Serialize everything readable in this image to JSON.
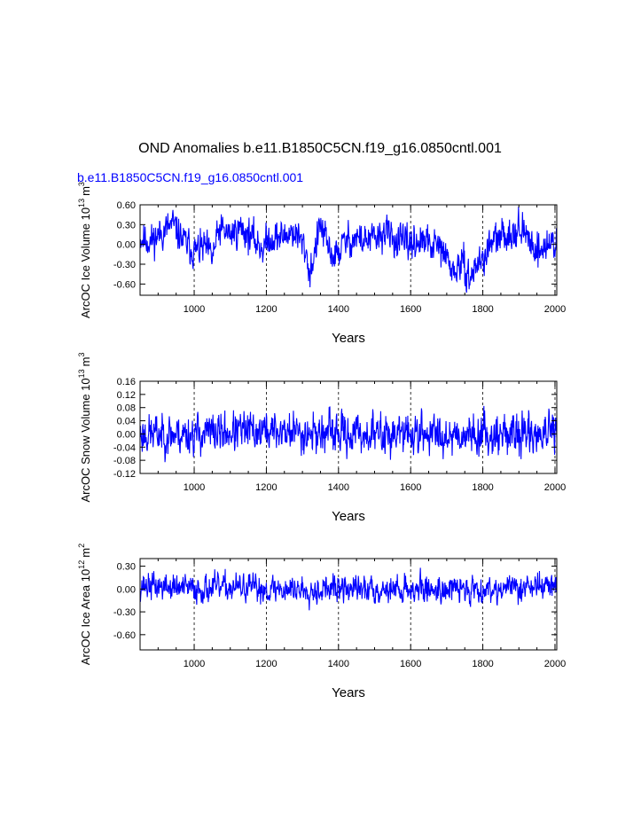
{
  "figure": {
    "title": "OND Anomalies b.e11.B1850C5CN.f19_g16.0850cntl.001",
    "subtitle": "b.e11.B1850C5CN.f19_g16.0850cntl.001",
    "subtitle_color": "#0000ff",
    "line_color": "#0000ff"
  },
  "chart_data": [
    {
      "type": "line",
      "name": "ice-volume",
      "title": "",
      "xlabel": "Years",
      "ylabel": "ArcOC Ice Volume 10",
      "ylabel_exp": "13",
      "ylabel_unit": "m",
      "ylabel_unit_exp": "3",
      "xlim": [
        850,
        2005
      ],
      "ylim": [
        -0.77,
        0.6
      ],
      "xticks": [
        1000,
        1200,
        1400,
        1600,
        1800,
        2000
      ],
      "yticks": [
        0.6,
        0.3,
        0.0,
        -0.3,
        -0.6
      ],
      "ytick_labels": [
        "0.60",
        "0.30",
        "0.00",
        "-0.30",
        "-0.60"
      ],
      "x_start": 850,
      "x_step": 1,
      "anchors": [
        [
          850,
          0.1
        ],
        [
          880,
          0.05
        ],
        [
          910,
          0.18
        ],
        [
          940,
          0.3
        ],
        [
          970,
          0.05
        ],
        [
          1000,
          -0.1
        ],
        [
          1030,
          -0.05
        ],
        [
          1050,
          -0.2
        ],
        [
          1070,
          0.22
        ],
        [
          1100,
          0.15
        ],
        [
          1130,
          0.25
        ],
        [
          1160,
          0.1
        ],
        [
          1190,
          -0.05
        ],
        [
          1210,
          0.1
        ],
        [
          1240,
          0.1
        ],
        [
          1270,
          0.2
        ],
        [
          1290,
          0.1
        ],
        [
          1310,
          -0.1
        ],
        [
          1320,
          -0.45
        ],
        [
          1335,
          -0.1
        ],
        [
          1350,
          0.3
        ],
        [
          1370,
          -0.05
        ],
        [
          1390,
          -0.2
        ],
        [
          1420,
          0.05
        ],
        [
          1450,
          0.1
        ],
        [
          1480,
          0.05
        ],
        [
          1510,
          0.1
        ],
        [
          1530,
          0.2
        ],
        [
          1560,
          0.05
        ],
        [
          1590,
          0.0
        ],
        [
          1620,
          0.05
        ],
        [
          1650,
          0.0
        ],
        [
          1680,
          -0.05
        ],
        [
          1700,
          -0.2
        ],
        [
          1720,
          -0.45
        ],
        [
          1735,
          -0.3
        ],
        [
          1750,
          -0.35
        ],
        [
          1765,
          -0.55
        ],
        [
          1780,
          -0.3
        ],
        [
          1800,
          -0.25
        ],
        [
          1820,
          0.0
        ],
        [
          1850,
          0.1
        ],
        [
          1880,
          0.2
        ],
        [
          1900,
          0.25
        ],
        [
          1930,
          0.05
        ],
        [
          1960,
          -0.1
        ],
        [
          1980,
          0.0
        ],
        [
          2005,
          0.05
        ]
      ],
      "noise": 0.17,
      "seed": 11
    },
    {
      "type": "line",
      "name": "snow-volume",
      "title": "",
      "xlabel": "Years",
      "ylabel": "ArcOC Snow Volume 10",
      "ylabel_exp": "13",
      "ylabel_unit": "m",
      "ylabel_unit_exp": "3",
      "xlim": [
        850,
        2005
      ],
      "ylim": [
        -0.12,
        0.16
      ],
      "xticks": [
        1000,
        1200,
        1400,
        1600,
        1800,
        2000
      ],
      "yticks": [
        0.16,
        0.12,
        0.08,
        0.04,
        0.0,
        -0.04,
        -0.08,
        -0.12
      ],
      "ytick_labels": [
        "0.16",
        "0.12",
        "0.08",
        "0.04",
        "0.00",
        "-0.04",
        "-0.08",
        "-0.12"
      ],
      "x_start": 850,
      "x_step": 1,
      "anchors": [
        [
          850,
          0.0
        ],
        [
          1000,
          0.0
        ],
        [
          1200,
          0.01
        ],
        [
          1400,
          0.0
        ],
        [
          1600,
          0.0
        ],
        [
          1800,
          0.0
        ],
        [
          2005,
          0.0
        ]
      ],
      "noise": 0.04,
      "seed": 23
    },
    {
      "type": "line",
      "name": "ice-area",
      "title": "",
      "xlabel": "Years",
      "ylabel": "ArcOC Ice Area 10",
      "ylabel_exp": "12",
      "ylabel_unit": "m",
      "ylabel_unit_exp": "2",
      "xlim": [
        850,
        2005
      ],
      "ylim": [
        -0.8,
        0.4
      ],
      "xticks": [
        1000,
        1200,
        1400,
        1600,
        1800,
        2000
      ],
      "yticks": [
        0.3,
        0.0,
        -0.3,
        -0.6
      ],
      "ytick_labels": [
        "0.30",
        "0.00",
        "-0.30",
        "-0.60"
      ],
      "x_start": 850,
      "x_step": 1,
      "anchors": [
        [
          850,
          0.05
        ],
        [
          1000,
          0.0
        ],
        [
          1100,
          0.02
        ],
        [
          1200,
          0.0
        ],
        [
          1400,
          0.0
        ],
        [
          1600,
          0.0
        ],
        [
          1800,
          0.0
        ],
        [
          2005,
          0.05
        ]
      ],
      "noise": 0.12,
      "seed": 37
    }
  ]
}
